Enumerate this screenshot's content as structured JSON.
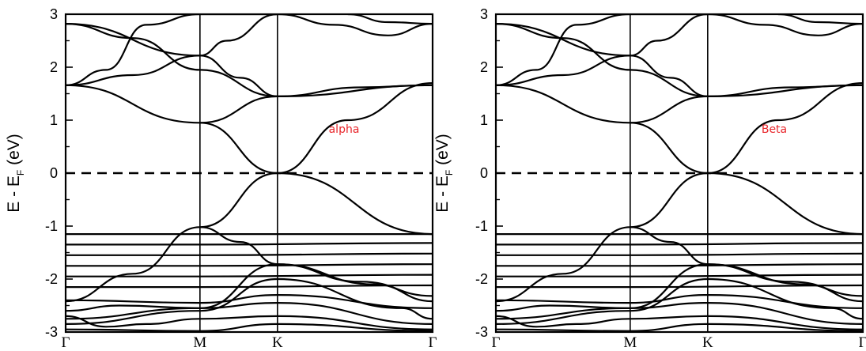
{
  "chart_data": [
    {
      "type": "line",
      "ylabel": "E - E_F (eV)",
      "ylim": [
        -3,
        3
      ],
      "yticks": [
        "-3",
        "-2",
        "-1",
        "0",
        "1",
        "2",
        "3"
      ],
      "x_ticks": [
        "Γ",
        "M",
        "K",
        "Γ"
      ],
      "annotation": "alpha",
      "annotation_color": "#e8262b",
      "fermi_level": 0,
      "grid": false,
      "series": [
        {
          "x": [
            0,
            1,
            1.577,
            2.732
          ],
          "y": [
            1.66,
            0.95,
            1.45,
            1.66
          ]
        },
        {
          "x": [
            0,
            0.5,
            1,
            1.3,
            1.577,
            2.2,
            2.732
          ],
          "y": [
            1.66,
            1.85,
            2.22,
            1.8,
            1.45,
            1.62,
            1.66
          ]
        },
        {
          "x": [
            0,
            0.3,
            0.6,
            1,
            1.577
          ],
          "y": [
            1.66,
            1.95,
            2.8,
            3.0,
            3.0
          ]
        },
        {
          "x": [
            0,
            1,
            1.2,
            1.577,
            2.0,
            2.4,
            2.732
          ],
          "y": [
            2.82,
            2.22,
            2.5,
            3.0,
            2.8,
            2.6,
            2.82
          ]
        },
        {
          "x": [
            0,
            0.5,
            1,
            1.577
          ],
          "y": [
            2.82,
            2.55,
            1.95,
            1.45
          ]
        },
        {
          "x": [
            2.1,
            2.4,
            2.732
          ],
          "y": [
            3.0,
            2.85,
            2.82
          ]
        },
        {
          "x": [
            1,
            1.577,
            2.732
          ],
          "y": [
            0.95,
            0.0,
            -1.15
          ]
        },
        {
          "x": [
            1,
            1.577,
            2.1,
            2.732
          ],
          "y": [
            -1.02,
            0.0,
            1.0,
            1.7
          ]
        },
        {
          "x": [
            0,
            1,
            2.732
          ],
          "y": [
            -1.15,
            -1.15,
            -1.15
          ]
        },
        {
          "x": [
            0,
            1,
            2.732
          ],
          "y": [
            -1.35,
            -1.35,
            -1.32
          ]
        },
        {
          "x": [
            0,
            1,
            2.732
          ],
          "y": [
            -1.55,
            -1.55,
            -1.52
          ]
        },
        {
          "x": [
            0,
            1,
            2.732
          ],
          "y": [
            -1.75,
            -1.75,
            -1.72
          ]
        },
        {
          "x": [
            0,
            1,
            2.732
          ],
          "y": [
            -1.95,
            -1.95,
            -1.92
          ]
        },
        {
          "x": [
            0,
            1,
            2.732
          ],
          "y": [
            -2.15,
            -2.15,
            -2.12
          ]
        },
        {
          "x": [
            0,
            0.5,
            1,
            1.3,
            1.577,
            2.2,
            2.732
          ],
          "y": [
            -2.42,
            -1.9,
            -1.02,
            -1.3,
            -1.72,
            -2.05,
            -2.32
          ]
        },
        {
          "x": [
            0,
            1,
            1.577,
            2.3,
            2.732
          ],
          "y": [
            -2.75,
            -2.55,
            -1.72,
            -2.1,
            -2.42
          ]
        },
        {
          "x": [
            0,
            1,
            1.577,
            2.5,
            2.732
          ],
          "y": [
            -2.85,
            -2.6,
            -2.0,
            -2.55,
            -2.75
          ]
        },
        {
          "x": [
            0,
            1,
            1.577,
            2.732
          ],
          "y": [
            -2.4,
            -2.45,
            -2.3,
            -2.55
          ]
        },
        {
          "x": [
            0,
            0.4,
            1,
            1.577,
            2.732
          ],
          "y": [
            -2.6,
            -2.5,
            -2.55,
            -2.45,
            -2.85
          ]
        },
        {
          "x": [
            0,
            0.3,
            0.6,
            1,
            1.577,
            2.732
          ],
          "y": [
            -2.7,
            -2.9,
            -2.85,
            -2.75,
            -2.7,
            -2.95
          ]
        },
        {
          "x": [
            0,
            1,
            1.577,
            2.732
          ],
          "y": [
            -2.95,
            -2.98,
            -2.85,
            -2.98
          ]
        }
      ]
    },
    {
      "type": "line",
      "ylabel": "E - E_F (eV)",
      "ylim": [
        -3,
        3
      ],
      "yticks": [
        "-3",
        "-2",
        "-1",
        "0",
        "1",
        "2",
        "3"
      ],
      "x_ticks": [
        "Γ",
        "M",
        "K",
        "Γ"
      ],
      "annotation": "Beta",
      "annotation_color": "#e8262b",
      "fermi_level": 0,
      "grid": false,
      "series": [
        {
          "x": [
            0,
            1,
            1.577,
            2.732
          ],
          "y": [
            1.66,
            0.95,
            1.45,
            1.66
          ]
        },
        {
          "x": [
            0,
            0.5,
            1,
            1.3,
            1.577,
            2.2,
            2.732
          ],
          "y": [
            1.66,
            1.85,
            2.22,
            1.8,
            1.45,
            1.62,
            1.66
          ]
        },
        {
          "x": [
            0,
            0.3,
            0.6,
            1,
            1.577
          ],
          "y": [
            1.66,
            1.95,
            2.8,
            3.0,
            3.0
          ]
        },
        {
          "x": [
            0,
            1,
            1.2,
            1.577,
            2.0,
            2.4,
            2.732
          ],
          "y": [
            2.82,
            2.22,
            2.5,
            3.0,
            2.8,
            2.6,
            2.82
          ]
        },
        {
          "x": [
            0,
            0.5,
            1,
            1.577
          ],
          "y": [
            2.82,
            2.55,
            1.95,
            1.45
          ]
        },
        {
          "x": [
            2.1,
            2.4,
            2.732
          ],
          "y": [
            3.0,
            2.85,
            2.82
          ]
        },
        {
          "x": [
            1,
            1.577,
            2.732
          ],
          "y": [
            0.95,
            0.0,
            -1.15
          ]
        },
        {
          "x": [
            1,
            1.577,
            2.1,
            2.732
          ],
          "y": [
            -1.02,
            0.0,
            1.0,
            1.7
          ]
        },
        {
          "x": [
            0,
            1,
            2.732
          ],
          "y": [
            -1.15,
            -1.15,
            -1.15
          ]
        },
        {
          "x": [
            0,
            1,
            2.732
          ],
          "y": [
            -1.35,
            -1.35,
            -1.32
          ]
        },
        {
          "x": [
            0,
            1,
            2.732
          ],
          "y": [
            -1.55,
            -1.55,
            -1.52
          ]
        },
        {
          "x": [
            0,
            1,
            2.732
          ],
          "y": [
            -1.75,
            -1.75,
            -1.72
          ]
        },
        {
          "x": [
            0,
            1,
            2.732
          ],
          "y": [
            -1.95,
            -1.95,
            -1.92
          ]
        },
        {
          "x": [
            0,
            1,
            2.732
          ],
          "y": [
            -2.15,
            -2.15,
            -2.12
          ]
        },
        {
          "x": [
            0,
            0.5,
            1,
            1.3,
            1.577,
            2.2,
            2.732
          ],
          "y": [
            -2.42,
            -1.9,
            -1.02,
            -1.3,
            -1.72,
            -2.05,
            -2.32
          ]
        },
        {
          "x": [
            0,
            1,
            1.577,
            2.3,
            2.732
          ],
          "y": [
            -2.75,
            -2.55,
            -1.72,
            -2.1,
            -2.42
          ]
        },
        {
          "x": [
            0,
            1,
            1.577,
            2.5,
            2.732
          ],
          "y": [
            -2.85,
            -2.6,
            -2.0,
            -2.55,
            -2.75
          ]
        },
        {
          "x": [
            0,
            1,
            1.577,
            2.732
          ],
          "y": [
            -2.4,
            -2.45,
            -2.3,
            -2.55
          ]
        },
        {
          "x": [
            0,
            0.4,
            1,
            1.577,
            2.732
          ],
          "y": [
            -2.6,
            -2.5,
            -2.55,
            -2.45,
            -2.85
          ]
        },
        {
          "x": [
            0,
            0.3,
            0.6,
            1,
            1.577,
            2.732
          ],
          "y": [
            -2.7,
            -2.9,
            -2.85,
            -2.75,
            -2.7,
            -2.95
          ]
        },
        {
          "x": [
            0,
            1,
            1.577,
            2.732
          ],
          "y": [
            -2.95,
            -2.98,
            -2.85,
            -2.98
          ]
        }
      ]
    }
  ]
}
